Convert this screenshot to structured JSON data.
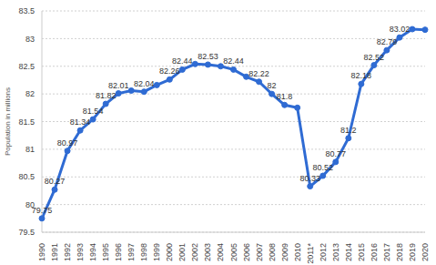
{
  "chart_data": {
    "type": "line",
    "y_label": "Population in millions",
    "categories": [
      "1990",
      "1991",
      "1992",
      "1993",
      "1994",
      "1995",
      "1996",
      "1997",
      "1998",
      "1999",
      "2000",
      "2001",
      "2002",
      "2003",
      "2004",
      "2005",
      "2006",
      "2007",
      "2008",
      "2009",
      "2010",
      "2011*",
      "2012",
      "2013",
      "2014",
      "2015",
      "2016",
      "2017",
      "2018",
      "2019",
      "2020"
    ],
    "values": [
      79.75,
      80.27,
      80.97,
      81.34,
      81.54,
      81.82,
      82.01,
      82.06,
      82.04,
      82.16,
      82.26,
      82.44,
      82.54,
      82.53,
      82.5,
      82.44,
      82.31,
      82.22,
      82,
      81.8,
      81.75,
      80.33,
      80.52,
      80.77,
      81.2,
      82.18,
      82.52,
      82.79,
      83.02,
      83.17,
      83.16
    ],
    "value_labels": [
      "79.75",
      "80.27",
      "80.97",
      "81.34",
      "81.54",
      "81.82",
      "82.01",
      null,
      "82.04",
      null,
      "82.26",
      "82.44",
      null,
      "82.53",
      null,
      "82.44",
      null,
      "82.22",
      "82",
      "81.8",
      null,
      "80.33",
      "80.52",
      "80.77",
      "81.2",
      "82.18",
      "82.52",
      "82.79",
      "83.02",
      null,
      null
    ],
    "color": "#2f6bd3",
    "marker": "circle",
    "ylim": [
      79.5,
      83.5
    ],
    "yticks": [
      79.5,
      80,
      80.5,
      81,
      81.5,
      82,
      82.5,
      83,
      83.5
    ],
    "grid": true,
    "data_labels": true
  }
}
